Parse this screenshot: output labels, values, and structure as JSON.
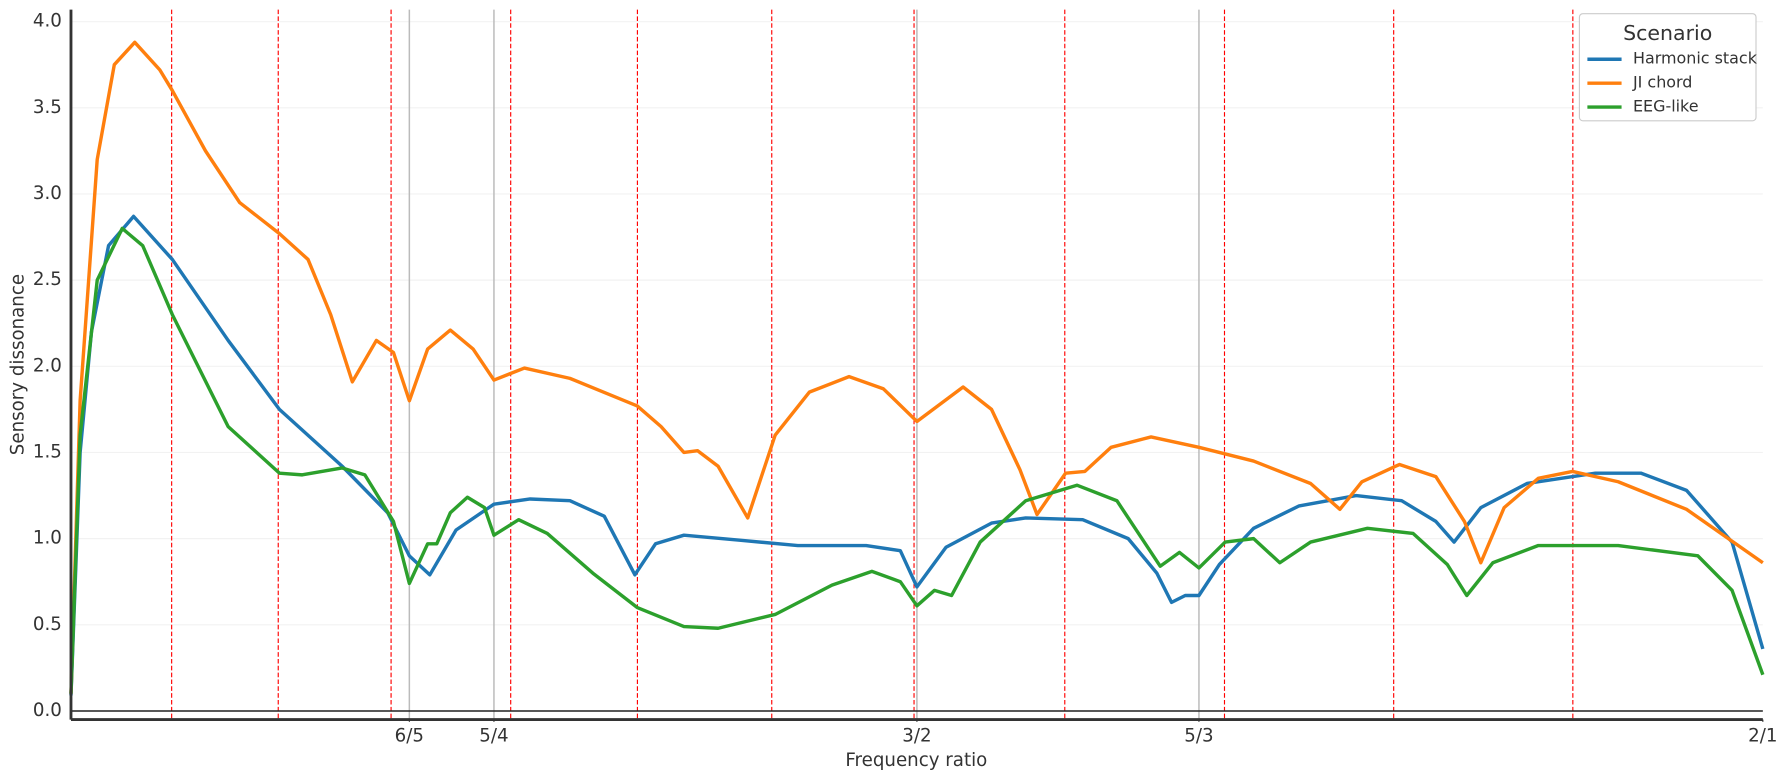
{
  "chart_data": {
    "type": "line",
    "xlabel": "Frequency ratio",
    "ylabel": "Sensory dissonance",
    "xlim": [
      1,
      2
    ],
    "ylim": [
      -0.05,
      4.07
    ],
    "xticks": [
      {
        "value": 1.2,
        "label": "6/5"
      },
      {
        "value": 1.25,
        "label": "5/4"
      },
      {
        "value": 1.5,
        "label": "3/2"
      },
      {
        "value": 1.6667,
        "label": "5/3"
      },
      {
        "value": 2,
        "label": "2/1"
      }
    ],
    "yticks": [
      {
        "value": 0,
        "label": "0.0"
      },
      0.5,
      {
        "value": 1,
        "label": "1.0"
      },
      1.5,
      {
        "value": 2,
        "label": "2.0"
      },
      2.5,
      {
        "value": 3,
        "label": "3.0"
      },
      3.5,
      {
        "value": 4,
        "label": "4.0"
      }
    ],
    "grid": true,
    "ratio_lines": [
      1.2,
      1.25,
      1.5,
      1.6667
    ],
    "ratio_line_color": "#bbbbbb",
    "tet_lines": [
      1.0595,
      1.1225,
      1.1892,
      1.2599,
      1.3348,
      1.4142,
      1.4983,
      1.5874,
      1.6818,
      1.7818,
      1.8877
    ],
    "tet_line_color": "#ff0000",
    "legend_title": "Scenario",
    "legend_position": "upper right",
    "series": [
      {
        "name": "Harmonic stack",
        "color": "#1f77b4",
        "x": [
          1,
          1.0054,
          1.0121,
          1.0222,
          1.037,
          1.0599,
          1.0929,
          1.1232,
          1.1603,
          1.1872,
          1.2,
          1.2121,
          1.2276,
          1.25,
          1.2714,
          1.2949,
          1.3152,
          1.3333,
          1.3455,
          1.3623,
          1.396,
          1.4296,
          1.47,
          1.4902,
          1.5,
          1.5172,
          1.5441,
          1.5643,
          1.598,
          1.6249,
          1.6418,
          1.6505,
          1.6586,
          1.6667,
          1.6788,
          1.699,
          1.7259,
          1.7596,
          1.7865,
          1.8067,
          1.8175,
          1.8333,
          1.8606,
          1.901,
          1.9279,
          1.9549,
          1.9818,
          2
        ],
        "values": [
          0.09,
          1.5,
          2.2,
          2.7,
          2.87,
          2.62,
          2.15,
          1.75,
          1.42,
          1.15,
          0.9,
          0.79,
          1.05,
          1.2,
          1.23,
          1.22,
          1.13,
          0.79,
          0.97,
          1.02,
          0.99,
          0.96,
          0.96,
          0.93,
          0.72,
          0.95,
          1.09,
          1.12,
          1.11,
          1.0,
          0.8,
          0.63,
          0.67,
          0.67,
          0.85,
          1.06,
          1.19,
          1.25,
          1.22,
          1.1,
          0.98,
          1.18,
          1.32,
          1.38,
          1.38,
          1.28,
          0.98,
          0.36
        ]
      },
      {
        "name": "JI chord",
        "color": "#ff7f0e",
        "x": [
          1,
          1.0054,
          1.0155,
          1.0256,
          1.0377,
          1.0525,
          1.0599,
          1.0795,
          1.0997,
          1.1232,
          1.1401,
          1.1535,
          1.1663,
          1.1805,
          1.1906,
          1.2,
          1.2108,
          1.2242,
          1.2377,
          1.25,
          1.268,
          1.2949,
          1.3347,
          1.3488,
          1.3623,
          1.3704,
          1.3825,
          1.4,
          1.4162,
          1.4364,
          1.4599,
          1.4801,
          1.5,
          1.5273,
          1.5441,
          1.5609,
          1.571,
          1.5879,
          1.5993,
          1.6148,
          1.6384,
          1.6667,
          1.699,
          1.7327,
          1.75,
          1.763,
          1.7852,
          1.8067,
          1.8236,
          1.8333,
          1.8471,
          1.8673,
          1.8875,
          1.9145,
          1.9549,
          2
        ],
        "values": [
          0.1,
          1.8,
          3.2,
          3.75,
          3.88,
          3.72,
          3.6,
          3.25,
          2.95,
          2.77,
          2.62,
          2.3,
          1.91,
          2.15,
          2.08,
          1.8,
          2.1,
          2.21,
          2.1,
          1.92,
          1.99,
          1.93,
          1.77,
          1.65,
          1.5,
          1.51,
          1.42,
          1.12,
          1.6,
          1.85,
          1.94,
          1.87,
          1.68,
          1.88,
          1.75,
          1.4,
          1.14,
          1.38,
          1.39,
          1.53,
          1.59,
          1.53,
          1.45,
          1.32,
          1.17,
          1.33,
          1.43,
          1.36,
          1.1,
          0.86,
          1.18,
          1.35,
          1.39,
          1.33,
          1.17,
          0.86
        ]
      },
      {
        "name": "EEG-like",
        "color": "#2ca02c",
        "x": [
          1,
          1.0054,
          1.0155,
          1.0303,
          1.0424,
          1.0599,
          1.0929,
          1.1232,
          1.1367,
          1.1603,
          1.1737,
          1.1906,
          1.2,
          1.2108,
          1.2162,
          1.2242,
          1.2343,
          1.2444,
          1.25,
          1.2646,
          1.2815,
          1.3084,
          1.3347,
          1.3623,
          1.3825,
          1.4162,
          1.4498,
          1.4734,
          1.4902,
          1.5,
          1.5104,
          1.5205,
          1.5374,
          1.5643,
          1.5946,
          1.6182,
          1.6438,
          1.6552,
          1.6667,
          1.6822,
          1.699,
          1.7145,
          1.7327,
          1.7663,
          1.7933,
          1.8135,
          1.825,
          1.8404,
          1.8673,
          1.9145,
          1.9616,
          1.9818,
          2
        ],
        "values": [
          0.1,
          1.6,
          2.5,
          2.8,
          2.7,
          2.3,
          1.65,
          1.38,
          1.37,
          1.41,
          1.37,
          1.1,
          0.74,
          0.97,
          0.97,
          1.15,
          1.24,
          1.18,
          1.02,
          1.11,
          1.03,
          0.8,
          0.6,
          0.49,
          0.48,
          0.56,
          0.73,
          0.81,
          0.75,
          0.61,
          0.7,
          0.67,
          0.98,
          1.22,
          1.31,
          1.22,
          0.84,
          0.92,
          0.83,
          0.98,
          1.0,
          0.86,
          0.98,
          1.06,
          1.03,
          0.85,
          0.67,
          0.86,
          0.96,
          0.96,
          0.9,
          0.7,
          0.21
        ]
      }
    ]
  }
}
